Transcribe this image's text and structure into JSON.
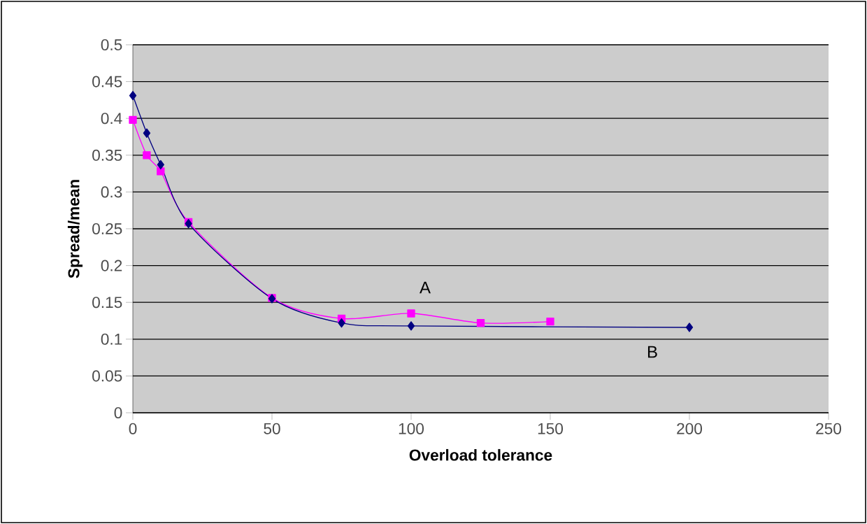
{
  "chart_data": {
    "type": "line",
    "xlabel": "Overload tolerance",
    "ylabel": "Spread/mean",
    "xlim": [
      0,
      250
    ],
    "xticks": [
      0,
      50,
      100,
      150,
      200,
      250
    ],
    "ylim": [
      0,
      0.5
    ],
    "yticks": [
      0,
      0.05,
      0.1,
      0.15,
      0.2,
      0.25,
      0.3,
      0.35,
      0.4,
      0.45,
      0.5
    ],
    "grid": "y",
    "line_style": "solid",
    "series": [
      {
        "color": "#000080",
        "marker": "diamond",
        "x": [
          0,
          5,
          10,
          20,
          50,
          75,
          100,
          200
        ],
        "values": [
          0.431,
          0.38,
          0.337,
          0.257,
          0.155,
          0.122,
          0.118,
          0.116
        ]
      },
      {
        "color": "#ff00ff",
        "marker": "square",
        "x": [
          0,
          5,
          10,
          20,
          50,
          75,
          100,
          125,
          150
        ],
        "values": [
          0.398,
          0.35,
          0.328,
          0.259,
          0.156,
          0.128,
          0.135,
          0.122,
          0.124
        ]
      }
    ],
    "annotations": [
      "A",
      "B"
    ]
  }
}
